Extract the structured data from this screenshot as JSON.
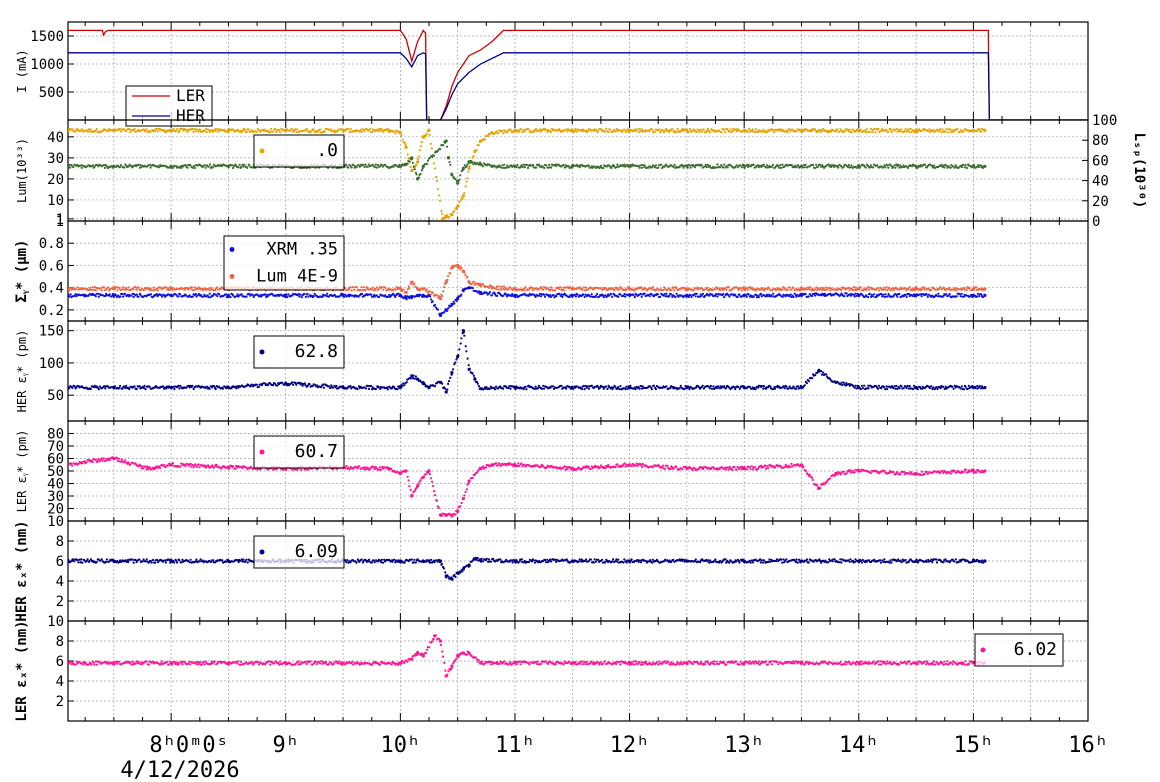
{
  "colors": {
    "ler_current": "#cc0000",
    "her_current": "#00008b",
    "luminosity": "#e6a400",
    "specific_lumi": "#3b6e2f",
    "xrm": "#1010dd",
    "lum_sigma": "#ee6644",
    "her_points": "#000080",
    "ler_points": "#ff1493",
    "grid": "#a0a0a0"
  },
  "time_axis": {
    "ticks": [
      "8ʰ0ᵐ0ˢ",
      "9ʰ",
      "10ʰ",
      "11ʰ",
      "12ʰ",
      "13ʰ",
      "14ʰ",
      "15ʰ",
      "16ʰ"
    ],
    "date": "4/12/2026"
  },
  "chart_data": [
    {
      "type": "line",
      "ylabel": "I (mA)",
      "yticks": [
        "500",
        "1000",
        "1500"
      ],
      "legend": [
        "LER",
        "HER"
      ],
      "legend_placement": "bottom-left",
      "x_range": [
        7.1,
        16
      ],
      "y_range": [
        0,
        1750
      ],
      "series": [
        {
          "name": "LER",
          "x": [
            7.1,
            7.4,
            7.41,
            7.43,
            7.45,
            10.0,
            10.05,
            10.1,
            10.15,
            10.2,
            10.22,
            10.23,
            10.35,
            10.4,
            10.45,
            10.5,
            10.55,
            10.6,
            10.7,
            10.8,
            10.85,
            10.9,
            15.13,
            15.14,
            16.0
          ],
          "y": [
            1600,
            1600,
            1520,
            1580,
            1600,
            1600,
            1450,
            1050,
            1400,
            1600,
            1550,
            0,
            0,
            250,
            600,
            850,
            1000,
            1150,
            1250,
            1400,
            1500,
            1600,
            1600,
            0,
            0
          ]
        },
        {
          "name": "HER",
          "x": [
            7.1,
            10.0,
            10.05,
            10.1,
            10.15,
            10.2,
            10.22,
            10.23,
            10.35,
            10.4,
            10.45,
            10.5,
            10.6,
            10.7,
            10.8,
            10.9,
            15.13,
            15.14,
            16.0
          ],
          "y": [
            1200,
            1200,
            1100,
            950,
            1150,
            1200,
            1180,
            0,
            0,
            200,
            450,
            650,
            850,
            1000,
            1100,
            1200,
            1200,
            0,
            0
          ]
        }
      ]
    },
    {
      "type": "scatter",
      "ylabel": "Lum(10³³)",
      "ylabel_right": "Lₛₚ(10³⁰)",
      "yticks": [
        "1",
        "10",
        "20",
        "30",
        "40"
      ],
      "yticks_right": [
        "0",
        "20",
        "40",
        "60",
        "80",
        "100"
      ],
      "legend": [
        ".0"
      ],
      "x_range": [
        7.1,
        16
      ],
      "y_range": [
        0,
        48
      ],
      "series": [
        {
          "name": "Lum",
          "x": [
            7.1,
            7.5,
            8.0,
            8.5,
            9.0,
            9.5,
            9.9,
            10.0,
            10.05,
            10.1,
            10.15,
            10.2,
            10.25,
            10.37,
            10.4,
            10.45,
            10.5,
            10.55,
            10.6,
            10.65,
            10.7,
            10.8,
            11.0,
            11.5,
            12.0,
            12.5,
            13.0,
            13.5,
            14.0,
            14.5,
            15.0,
            15.1
          ],
          "y": [
            43,
            43,
            43,
            43,
            43,
            43,
            43,
            42,
            35,
            24,
            28,
            40,
            43,
            1,
            2,
            3,
            7,
            12,
            25,
            33,
            38,
            42,
            43,
            43,
            43,
            43,
            43,
            43,
            43,
            43,
            43,
            43
          ]
        },
        {
          "name": "Lsp",
          "x": [
            7.1,
            7.5,
            8.0,
            8.5,
            9.0,
            9.5,
            10.0,
            10.05,
            10.1,
            10.15,
            10.2,
            10.4,
            10.42,
            10.45,
            10.5,
            10.55,
            10.6,
            10.7,
            10.8,
            11.0,
            11.5,
            12.0,
            12.5,
            13.0,
            13.5,
            14.0,
            14.5,
            15.0,
            15.1
          ],
          "y": [
            26,
            26,
            26,
            26,
            26,
            26,
            26,
            27,
            30,
            20,
            26,
            38,
            30,
            22,
            18,
            25,
            28,
            27,
            26,
            26,
            26,
            26,
            26,
            26,
            26,
            26,
            26,
            26,
            26
          ]
        }
      ]
    },
    {
      "type": "scatter",
      "ylabel": "Σᵧ* (µm)",
      "yticks": [
        "0.2",
        "0.4",
        "0.6",
        "0.8",
        "1"
      ],
      "legend": [
        "XRM  .35",
        "Lum 4E-9"
      ],
      "legend_placement": "top-left",
      "x_range": [
        7.1,
        16
      ],
      "y_range": [
        0.1,
        1.0
      ],
      "series": [
        {
          "name": "XRM",
          "x": [
            7.1,
            7.5,
            8.0,
            8.5,
            9.0,
            9.5,
            10.0,
            10.05,
            10.1,
            10.15,
            10.2,
            10.25,
            10.35,
            10.4,
            10.45,
            10.5,
            10.55,
            10.6,
            10.7,
            11.0,
            11.5,
            12.0,
            12.5,
            13.0,
            13.5,
            13.7,
            14.0,
            14.5,
            15.0,
            15.1
          ],
          "y": [
            0.33,
            0.33,
            0.33,
            0.33,
            0.33,
            0.33,
            0.33,
            0.31,
            0.32,
            0.33,
            0.33,
            0.33,
            0.15,
            0.2,
            0.25,
            0.3,
            0.38,
            0.4,
            0.35,
            0.33,
            0.33,
            0.33,
            0.33,
            0.33,
            0.33,
            0.34,
            0.33,
            0.33,
            0.33,
            0.33
          ]
        },
        {
          "name": "Lum",
          "x": [
            7.1,
            7.5,
            8.0,
            8.5,
            9.0,
            9.5,
            10.0,
            10.05,
            10.1,
            10.15,
            10.2,
            10.35,
            10.4,
            10.45,
            10.5,
            10.55,
            10.6,
            10.7,
            10.8,
            11.0,
            11.5,
            12.0,
            12.5,
            13.0,
            13.5,
            14.0,
            14.5,
            15.0,
            15.1
          ],
          "y": [
            0.39,
            0.39,
            0.39,
            0.39,
            0.39,
            0.39,
            0.39,
            0.36,
            0.45,
            0.39,
            0.39,
            0.3,
            0.45,
            0.58,
            0.6,
            0.55,
            0.45,
            0.42,
            0.4,
            0.39,
            0.39,
            0.39,
            0.39,
            0.39,
            0.39,
            0.39,
            0.39,
            0.39,
            0.39
          ]
        }
      ]
    },
    {
      "type": "scatter",
      "ylabel": "HER εᵧ* (pm)",
      "yticks": [
        "50",
        "100",
        "150"
      ],
      "legend": [
        "62.8"
      ],
      "x_range": [
        7.1,
        16
      ],
      "y_range": [
        10,
        165
      ],
      "series": [
        {
          "name": "HER εy*",
          "x": [
            7.1,
            7.5,
            8.0,
            8.5,
            9.0,
            9.5,
            10.0,
            10.1,
            10.15,
            10.2,
            10.25,
            10.35,
            10.4,
            10.45,
            10.5,
            10.55,
            10.6,
            10.65,
            10.7,
            11.0,
            11.5,
            12.0,
            12.5,
            13.0,
            13.5,
            13.65,
            13.8,
            14.0,
            14.5,
            15.0,
            15.1
          ],
          "y": [
            62,
            62,
            62,
            62,
            68,
            62,
            62,
            80,
            75,
            68,
            62,
            70,
            55,
            85,
            110,
            150,
            90,
            75,
            60,
            62,
            62,
            62,
            62,
            62,
            62,
            88,
            70,
            62,
            62,
            62,
            62
          ]
        }
      ]
    },
    {
      "type": "scatter",
      "ylabel": "LER εᵧ* (pm)",
      "yticks": [
        "10",
        "20",
        "30",
        "40",
        "50",
        "60",
        "70",
        "80"
      ],
      "legend": [
        "60.7"
      ],
      "x_range": [
        7.1,
        16
      ],
      "y_range": [
        10,
        90
      ],
      "series": [
        {
          "name": "LER εy*",
          "x": [
            7.1,
            7.3,
            7.5,
            7.8,
            8.0,
            8.5,
            9.0,
            9.5,
            9.9,
            10.0,
            10.05,
            10.1,
            10.15,
            10.2,
            10.25,
            10.35,
            10.4,
            10.45,
            10.5,
            10.55,
            10.6,
            10.7,
            10.8,
            11.0,
            11.5,
            12.0,
            12.5,
            13.0,
            13.5,
            13.65,
            13.8,
            14.0,
            14.5,
            15.0,
            15.1
          ],
          "y": [
            55,
            58,
            60,
            52,
            55,
            53,
            52,
            53,
            52,
            48,
            50,
            30,
            38,
            45,
            50,
            15,
            15,
            14,
            18,
            28,
            42,
            52,
            55,
            55,
            52,
            55,
            52,
            52,
            55,
            36,
            48,
            50,
            48,
            50,
            50
          ]
        }
      ]
    },
    {
      "type": "scatter",
      "ylabel": "HER εₓ* (nm)",
      "yticks": [
        "2",
        "4",
        "6",
        "8"
      ],
      "legend": [
        "6.09"
      ],
      "x_range": [
        7.1,
        16
      ],
      "y_range": [
        0,
        10
      ],
      "series": [
        {
          "name": "HER εx*",
          "x": [
            7.1,
            7.5,
            8.0,
            8.5,
            9.0,
            9.5,
            10.0,
            10.2,
            10.25,
            10.35,
            10.4,
            10.45,
            10.5,
            10.55,
            10.6,
            10.65,
            10.7,
            11.0,
            11.5,
            12.0,
            12.5,
            13.0,
            13.5,
            14.0,
            14.5,
            15.0,
            15.1
          ],
          "y": [
            6,
            6,
            6,
            6,
            6,
            6,
            6,
            6,
            6,
            6,
            4.5,
            4.2,
            4.8,
            5.2,
            5.6,
            6.2,
            6.1,
            6,
            6,
            6,
            6,
            6,
            6,
            6,
            6,
            6,
            6
          ]
        }
      ]
    },
    {
      "type": "scatter",
      "ylabel": "LER εₓ* (nm)",
      "yticks": [
        "2",
        "4",
        "6",
        "8",
        "10"
      ],
      "legend": [
        "6.02"
      ],
      "legend_placement": "right",
      "x_range": [
        7.1,
        16
      ],
      "y_range": [
        0,
        10
      ],
      "series": [
        {
          "name": "LER εx*",
          "x": [
            7.1,
            7.5,
            8.0,
            8.5,
            9.0,
            9.5,
            10.0,
            10.1,
            10.15,
            10.2,
            10.3,
            10.35,
            10.4,
            10.45,
            10.5,
            10.55,
            10.6,
            10.7,
            11.0,
            11.5,
            12.0,
            12.5,
            13.0,
            13.5,
            14.0,
            14.5,
            15.0,
            15.1
          ],
          "y": [
            5.8,
            5.8,
            5.8,
            5.8,
            5.8,
            5.8,
            5.8,
            6.2,
            6.8,
            6.5,
            8.5,
            8,
            4.5,
            5.5,
            6.5,
            6.8,
            6.8,
            5.8,
            5.8,
            5.8,
            5.8,
            5.8,
            5.8,
            5.8,
            5.8,
            5.8,
            5.8,
            5.8
          ]
        }
      ]
    }
  ]
}
